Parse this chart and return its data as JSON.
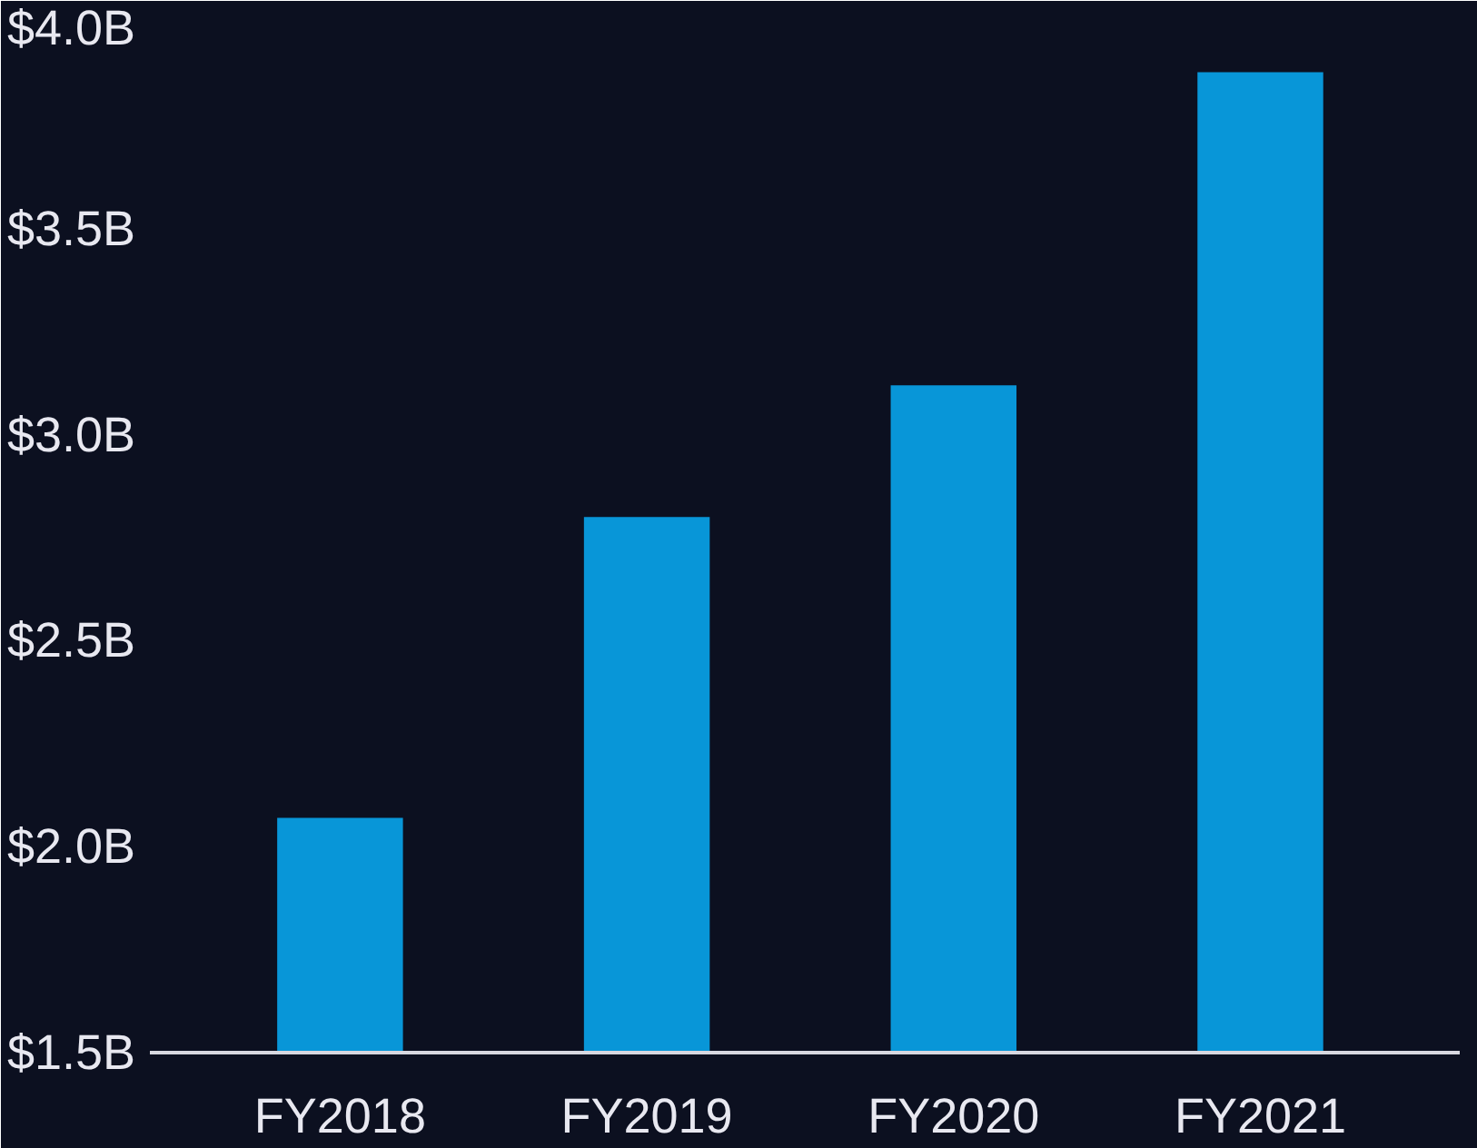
{
  "chart_data": {
    "type": "bar",
    "categories": [
      "FY2018",
      "FY2019",
      "FY2020",
      "FY2021"
    ],
    "values": [
      2.07,
      2.8,
      3.12,
      3.88
    ],
    "color": "#0896d8",
    "ylim": [
      1.5,
      4.0
    ],
    "yticks": [
      {
        "value": 1.5,
        "label": "$1.5B"
      },
      {
        "value": 2.0,
        "label": "$2.0B"
      },
      {
        "value": 2.5,
        "label": "$2.5B"
      },
      {
        "value": 3.0,
        "label": "$3.0B"
      },
      {
        "value": 3.5,
        "label": "$3.5B"
      },
      {
        "value": 4.0,
        "label": "$4.0B"
      }
    ],
    "grid": false
  }
}
